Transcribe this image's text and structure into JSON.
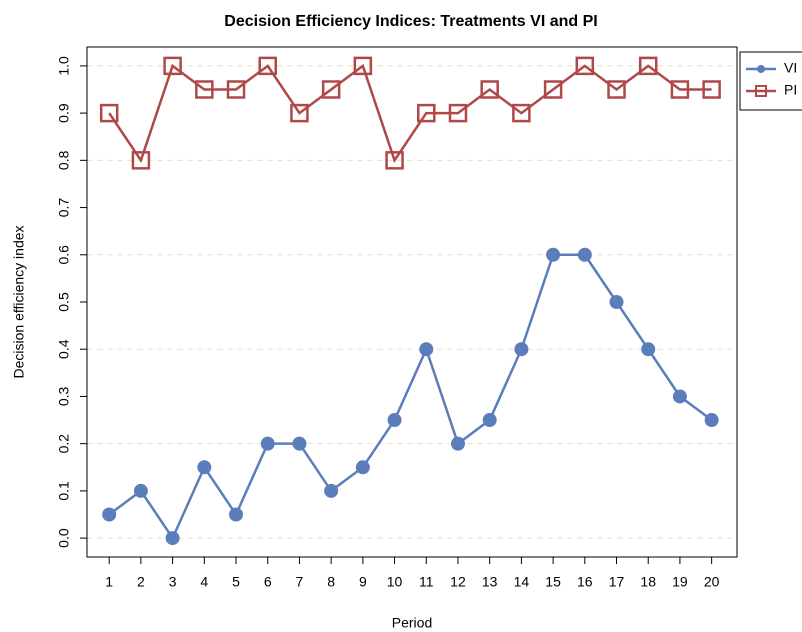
{
  "chart_data": {
    "type": "line",
    "title": "Decision Efficiency Indices: Treatments VI and PI",
    "x_label": "Period",
    "y_label": "Decision efficiency index",
    "x": [
      1,
      2,
      3,
      4,
      5,
      6,
      7,
      8,
      9,
      10,
      11,
      12,
      13,
      14,
      15,
      16,
      17,
      18,
      19,
      20
    ],
    "series": [
      {
        "name": "VI",
        "color": "#5b7dbb",
        "marker": "circle",
        "values": [
          0.05,
          0.1,
          0,
          0.15,
          0.05,
          0.2,
          0.2,
          0.1,
          0.15,
          0.25,
          0.4,
          0.2,
          0.25,
          0.4,
          0.6,
          0.6,
          0.5,
          0.4,
          0.3,
          0.25
        ]
      },
      {
        "name": "PI",
        "color": "#b04848",
        "marker": "square",
        "values": [
          0.9,
          0.8,
          1,
          0.95,
          0.95,
          1,
          0.9,
          0.95,
          1,
          0.8,
          0.9,
          0.9,
          0.95,
          0.9,
          0.95,
          1,
          0.95,
          1,
          0.95,
          0.95
        ]
      }
    ],
    "xlim": [
      0.3,
      20.8
    ],
    "ylim": [
      -0.04,
      1.04
    ],
    "xticks": [
      1,
      2,
      3,
      4,
      5,
      6,
      7,
      8,
      9,
      10,
      11,
      12,
      13,
      14,
      15,
      16,
      17,
      18,
      19,
      20
    ],
    "yticks": [
      {
        "value": 0,
        "label": "0.0"
      },
      0.1,
      0.2,
      0.3,
      0.4,
      0.5,
      0.6,
      0.7,
      0.8,
      0.9,
      {
        "value": 1,
        "label": "1.0"
      }
    ],
    "ygrid": [
      0,
      0.2,
      0.4,
      0.6,
      0.8,
      1
    ],
    "legend": "top-right"
  }
}
